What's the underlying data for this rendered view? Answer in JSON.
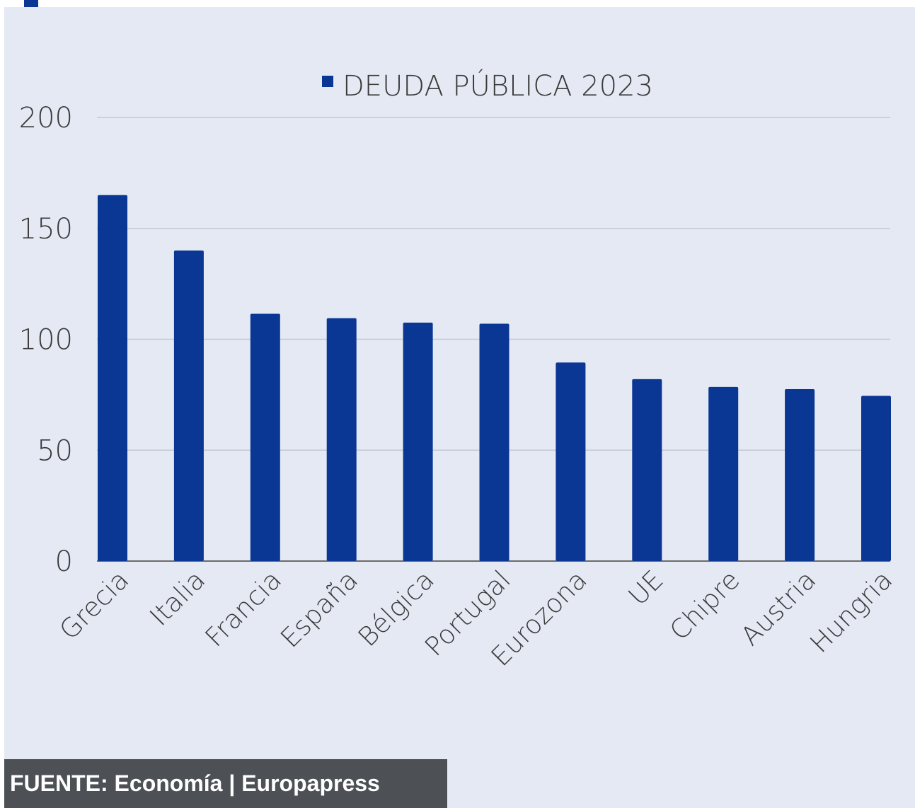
{
  "source_text": "FUENTE: Economía | Europapress",
  "colors": {
    "bar": "#0a3694",
    "background": "#e4e9f3",
    "grid": "#c3c8d2",
    "axis": "#6b6b6b",
    "source_bg": "#4d5156"
  },
  "chart_data": {
    "type": "bar",
    "title": "",
    "xlabel": "",
    "ylabel": "",
    "legend": {
      "entries": [
        "DEUDA PÚBLICA 2023"
      ],
      "placement": "top-center"
    },
    "categories": [
      "Grecia",
      "Italia",
      "Francia",
      "España",
      "Bélgica",
      "Portugal",
      "Eurozona",
      "UE",
      "Chipre",
      "Austria",
      "Hungria"
    ],
    "series": [
      {
        "name": "DEUDA PÚBLICA 2023",
        "values": [
          165,
          140,
          111.5,
          109.5,
          107.5,
          107,
          89.5,
          82,
          78.5,
          77.5,
          74.5
        ]
      }
    ],
    "ylim": [
      0,
      200
    ],
    "yticks": [
      "0",
      "50",
      "100",
      "150",
      "200"
    ],
    "grid": true
  }
}
